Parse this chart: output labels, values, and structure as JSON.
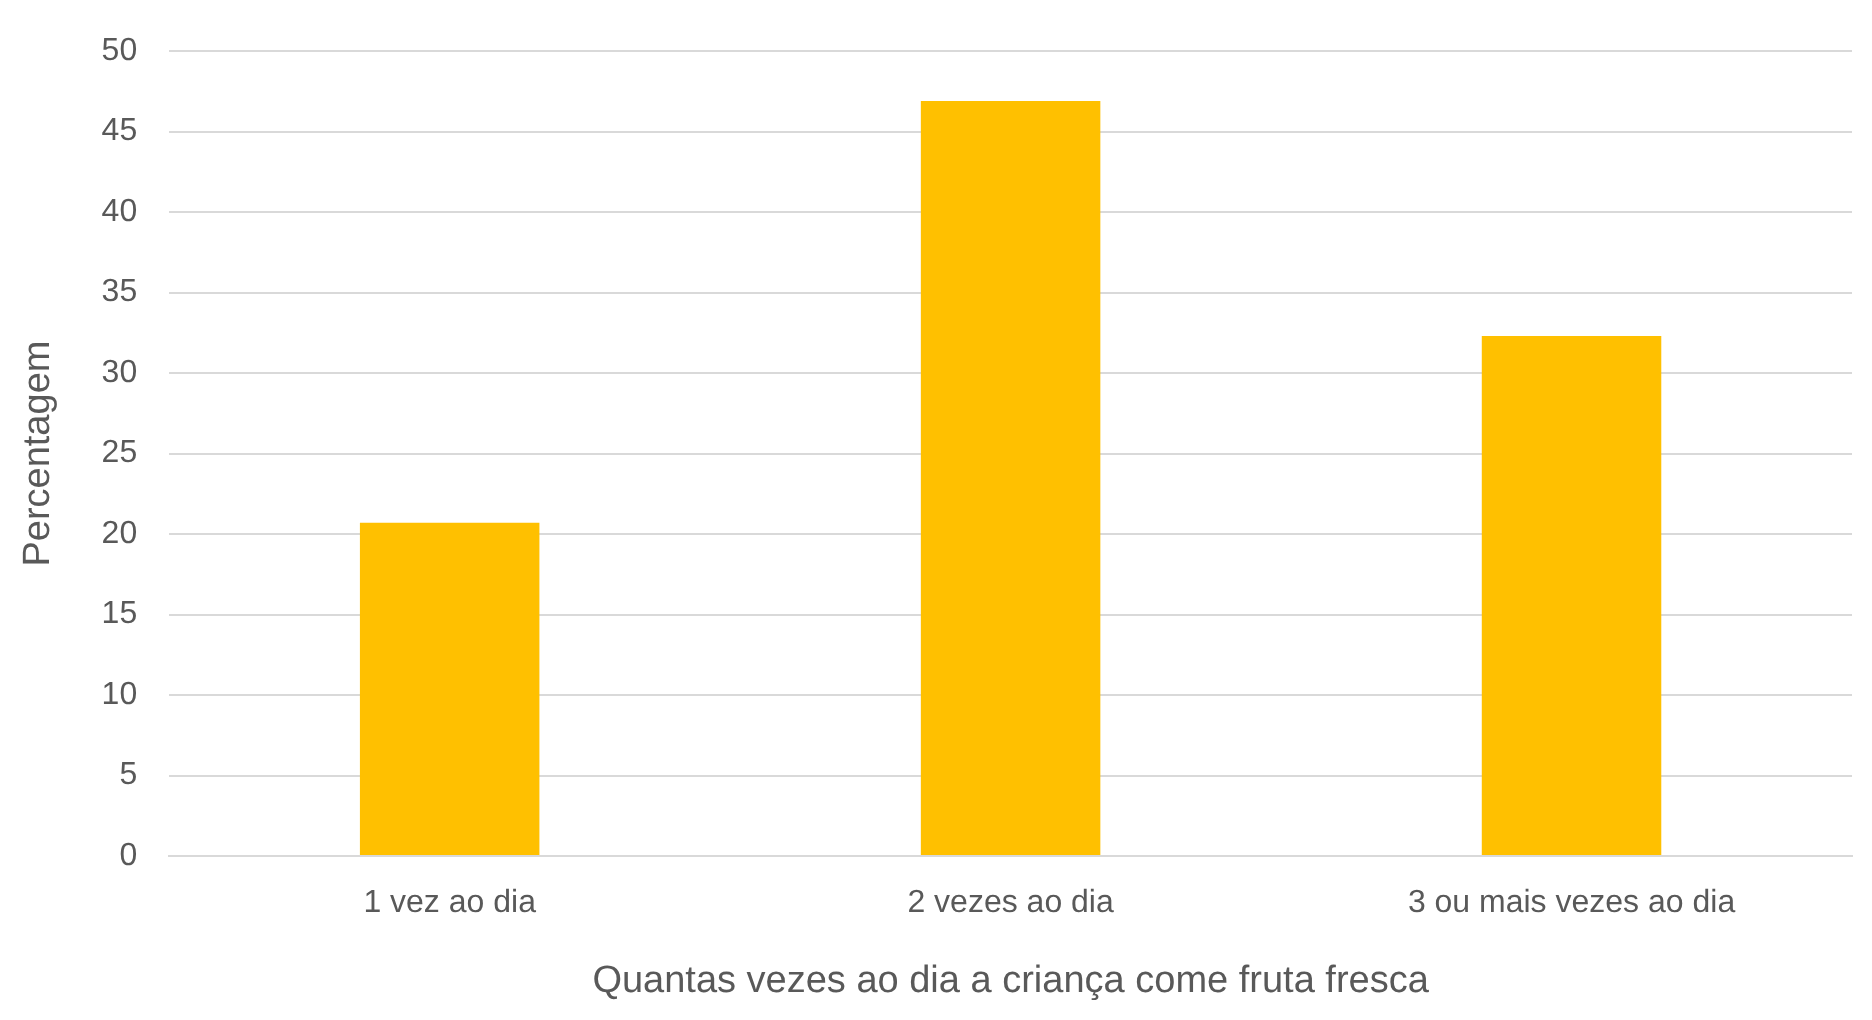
{
  "chart_data": {
    "type": "bar",
    "xlabel": "Quantas vezes ao dia a criança come fruta fresca",
    "ylabel": "Percentagem",
    "categories": [
      "1 vez ao dia",
      "2 vezes ao dia",
      "3 ou mais vezes ao dia"
    ],
    "values": [
      20.7,
      46.9,
      32.3
    ],
    "color": "#ffc000",
    "ylim": [
      0,
      50
    ],
    "yticks": [
      0,
      5,
      10,
      15,
      20,
      25,
      30,
      35,
      40,
      45,
      50
    ],
    "grid": "y",
    "legend": false
  }
}
